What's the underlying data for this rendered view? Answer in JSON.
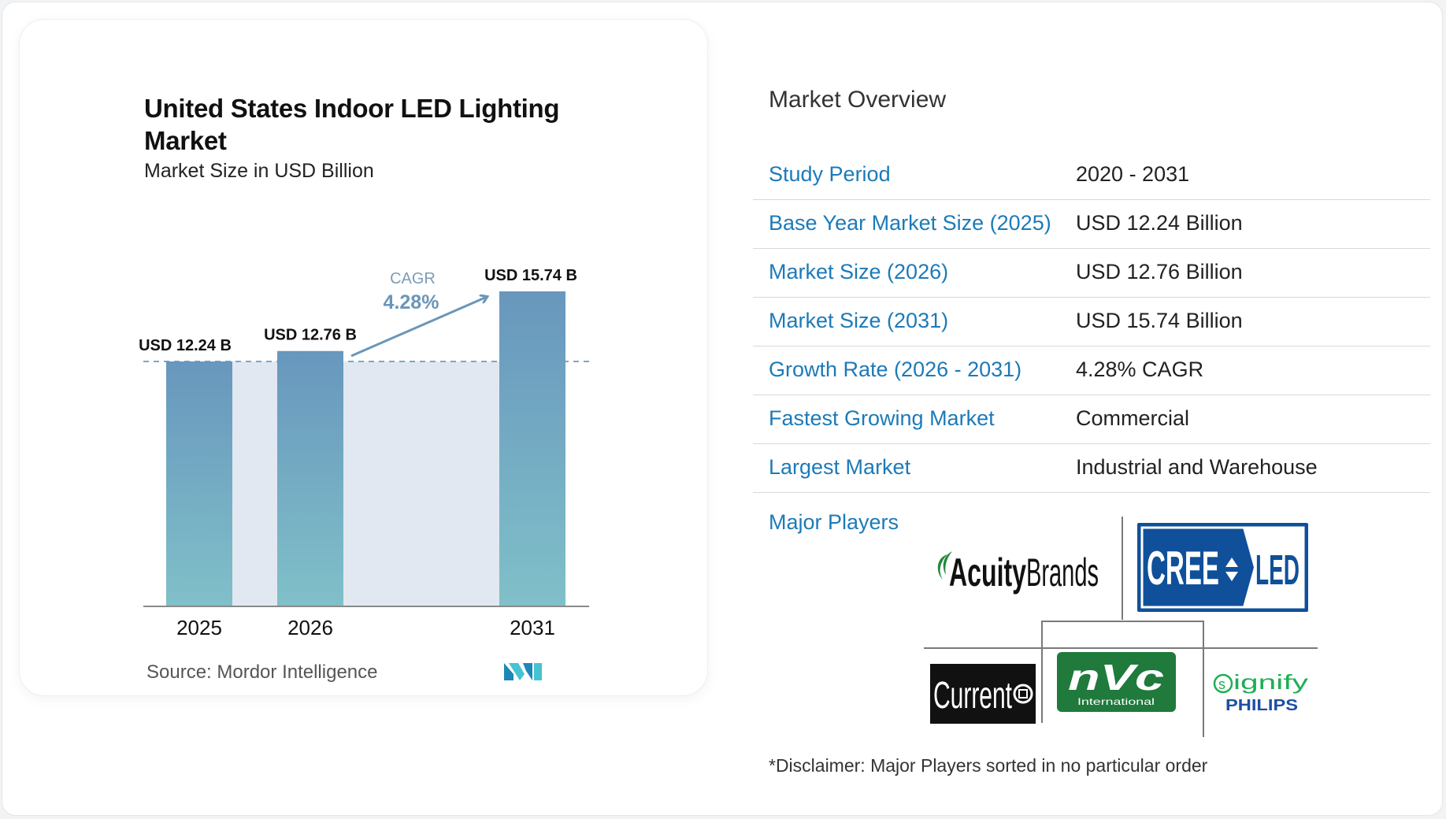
{
  "chart": {
    "title": "United States Indoor LED Lighting Market",
    "subtitle": "Market Size in USD Billion",
    "source": "Source:  Mordor Intelligence",
    "cagr_label": "CAGR",
    "cagr_value": "4.28%"
  },
  "chart_data": {
    "type": "bar",
    "categories": [
      "2025",
      "2026",
      "2031"
    ],
    "values": [
      12.24,
      12.76,
      15.74
    ],
    "value_labels": [
      "USD 12.24 B",
      "USD 12.76 B",
      "USD 15.74 B"
    ],
    "title": "United States Indoor LED Lighting Market",
    "subtitle": "Market Size in USD Billion",
    "xlabel": "",
    "ylabel": "",
    "ylim": [
      0,
      15.74
    ],
    "annotations": [
      "CAGR",
      "4.28%"
    ],
    "grid": false,
    "colors": {
      "bar_top": "#6897bd",
      "bar_bottom": "#80c0c9",
      "area": "#e1e8f1",
      "arrow": "#6b96b8"
    }
  },
  "overview": {
    "title": "Market Overview",
    "rows": [
      {
        "label": "Study Period",
        "value": "2020 - 2031"
      },
      {
        "label": "Base Year Market Size (2025)",
        "value": "USD 12.24 Billion"
      },
      {
        "label": "Market Size (2026)",
        "value": "USD 12.76 Billion"
      },
      {
        "label": "Market Size (2031)",
        "value": "USD 15.74 Billion"
      },
      {
        "label": "Growth Rate (2026 - 2031)",
        "value": "4.28% CAGR"
      },
      {
        "label": "Fastest Growing Market",
        "value": "Commercial"
      },
      {
        "label": "Largest Market",
        "value": "Industrial and Warehouse"
      }
    ],
    "players_label": "Major Players",
    "players": [
      {
        "name": "AcuityBrands",
        "icon": "acuity-brands-logo"
      },
      {
        "name": "CREE LED",
        "icon": "cree-led-logo"
      },
      {
        "name": "Current",
        "icon": "current-logo"
      },
      {
        "name": "NVC International",
        "icon": "nvc-logo"
      },
      {
        "name": "signify PHILIPS",
        "icon": "signify-philips-logo"
      }
    ],
    "disclaimer": "*Disclaimer: Major Players sorted in no particular order"
  },
  "logos": {
    "acuity_word1": "Acuity",
    "acuity_word2": "Brands",
    "cree_left": "CREE",
    "cree_right": "LED",
    "current": "Current",
    "nvc": "nVc",
    "nvc_sub": "International",
    "signify": "ignify",
    "philips": "PHILIPS"
  },
  "colors": {
    "accent": "#1c7ab8",
    "bar_top": "#6897bd",
    "bar_bottom": "#80c0c9"
  }
}
